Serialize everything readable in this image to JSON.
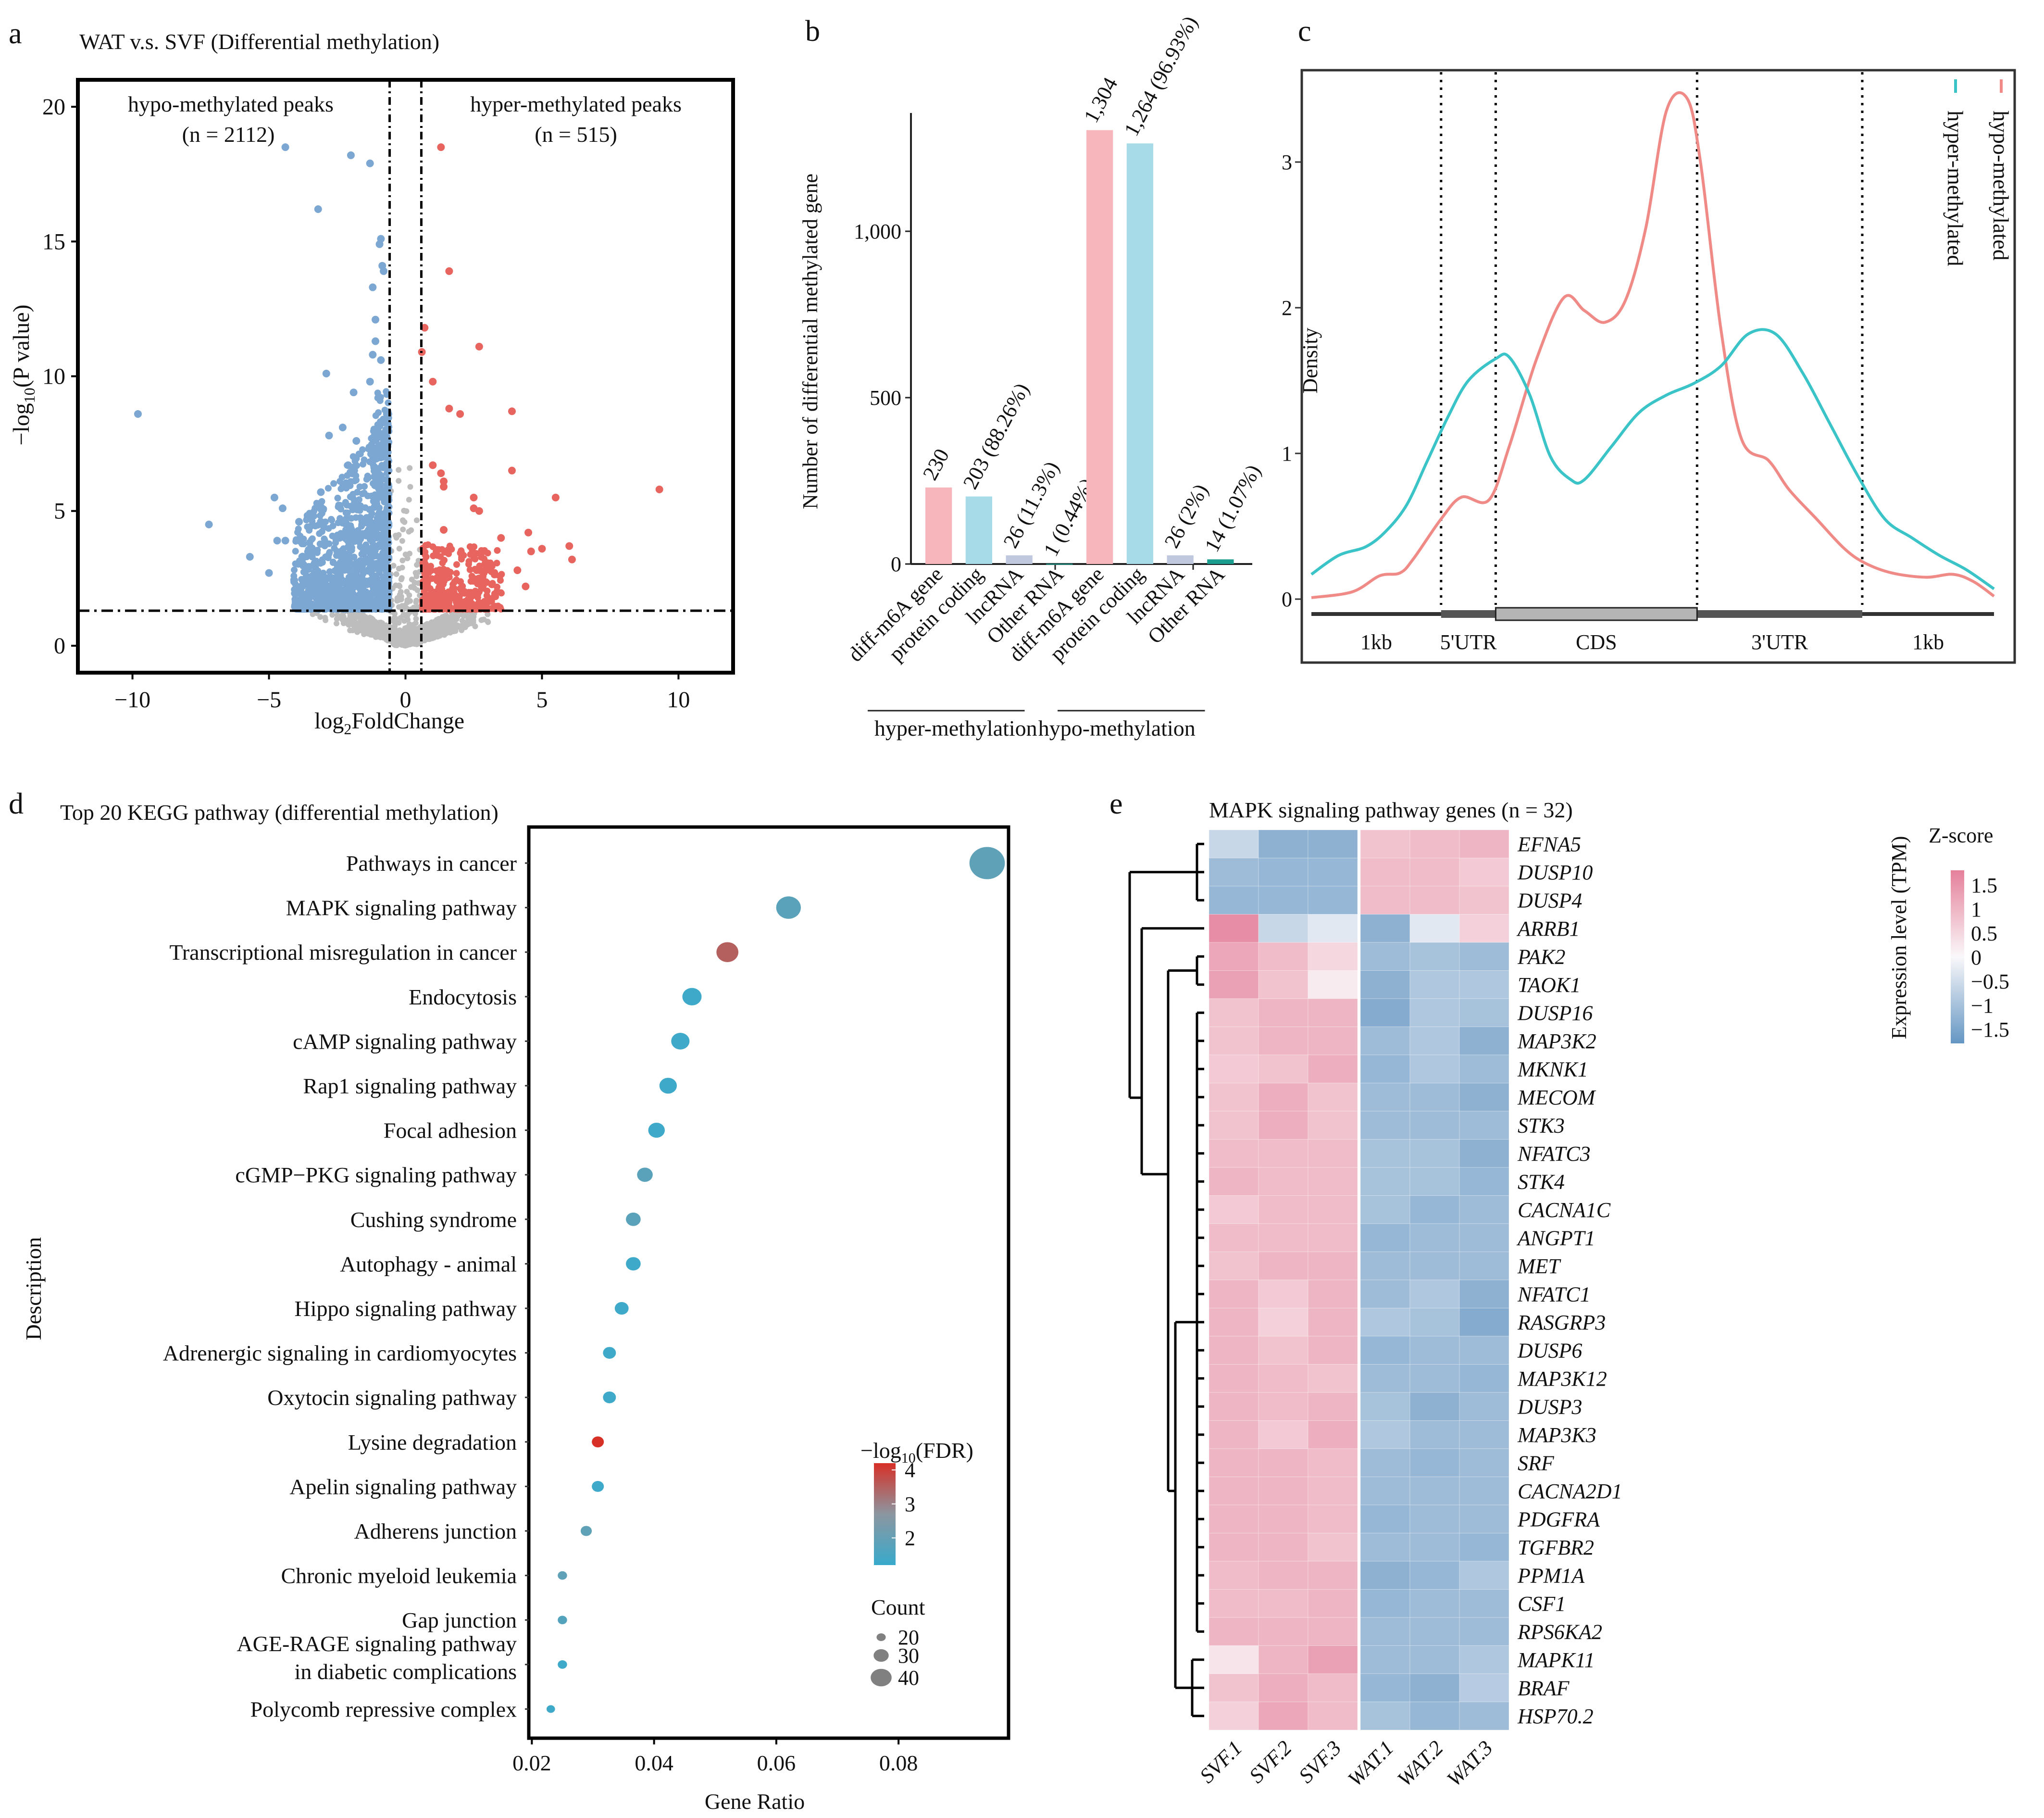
{
  "panels": {
    "a": "a",
    "b": "b",
    "c": "c",
    "d": "d",
    "e": "e"
  },
  "chart_data": [
    {
      "id": "a",
      "type": "scatter",
      "title": "WAT v.s. SVF (Differential methylation)",
      "xlabel": "log2FoldChange",
      "ylabel": "-log10(P value)",
      "xlim": [
        -12,
        12
      ],
      "ylim": [
        -1,
        21
      ],
      "xticks": [
        -10,
        -5,
        0,
        5,
        10
      ],
      "yticks": [
        0,
        5,
        10,
        15,
        20
      ],
      "thresholds": {
        "fc": [
          -0.58,
          0.58
        ],
        "p": 1.3
      },
      "annotations": [
        {
          "text": "hypo-methylated peaks",
          "sub": "(n = 2112)"
        },
        {
          "text": "hyper-methylated peaks",
          "sub": "(n = 515)"
        }
      ],
      "colors": {
        "hypo": "#7ba7d2",
        "hyper": "#e8655f",
        "ns": "#bdbdbd"
      },
      "highlight_points": {
        "hypo": [
          [
            -9.8,
            8.6
          ],
          [
            -7.2,
            4.5
          ],
          [
            -5.7,
            3.3
          ],
          [
            -5.0,
            2.7
          ],
          [
            -4.8,
            5.5
          ],
          [
            -4.5,
            5.1
          ],
          [
            -4.4,
            18.5
          ],
          [
            -3.2,
            16.2
          ],
          [
            -2.9,
            10.1
          ],
          [
            -2.0,
            18.2
          ],
          [
            -1.9,
            9.4
          ],
          [
            -1.3,
            17.9
          ],
          [
            -1.2,
            13.3
          ],
          [
            -1.1,
            12.1
          ],
          [
            -0.9,
            15.1
          ],
          [
            -0.95,
            14.9
          ],
          [
            -0.85,
            14.1
          ],
          [
            -0.8,
            13.9
          ],
          [
            -1.1,
            11.3
          ],
          [
            -1.2,
            10.8
          ],
          [
            -0.9,
            10.6
          ],
          [
            -1.3,
            9.8
          ],
          [
            -2.3,
            8.1
          ],
          [
            -2.8,
            7.8
          ],
          [
            -1.8,
            7.6
          ],
          [
            -2.1,
            6.7
          ],
          [
            -3.1,
            5.7
          ],
          [
            -4.7,
            3.9
          ],
          [
            -4.4,
            3.9
          ],
          [
            -3.9,
            4.6
          ],
          [
            -3.1,
            4.6
          ]
        ],
        "hyper": [
          [
            1.3,
            18.5
          ],
          [
            1.6,
            13.9
          ],
          [
            0.7,
            11.8
          ],
          [
            2.7,
            11.1
          ],
          [
            0.6,
            10.9
          ],
          [
            1.0,
            9.8
          ],
          [
            1.6,
            8.8
          ],
          [
            2.0,
            8.6
          ],
          [
            3.9,
            8.7
          ],
          [
            1.0,
            6.7
          ],
          [
            1.3,
            6.4
          ],
          [
            1.4,
            6.1
          ],
          [
            1.4,
            5.9
          ],
          [
            3.9,
            6.5
          ],
          [
            2.5,
            5.5
          ],
          [
            5.5,
            5.5
          ],
          [
            9.3,
            5.8
          ],
          [
            2.5,
            5.1
          ],
          [
            2.7,
            5.0
          ],
          [
            1.4,
            4.3
          ],
          [
            4.5,
            4.2
          ],
          [
            3.5,
            4.0
          ],
          [
            6.0,
            3.7
          ],
          [
            6.1,
            3.2
          ],
          [
            5.0,
            3.6
          ],
          [
            4.6,
            3.5
          ],
          [
            4.1,
            2.8
          ],
          [
            4.4,
            2.2
          ]
        ]
      }
    },
    {
      "id": "b",
      "type": "bar",
      "ylabel": "Number of differential methylated gene",
      "ylim": [
        0,
        1350
      ],
      "yticks": [
        0,
        500,
        1000
      ],
      "ytick_labels": [
        "0",
        "500",
        "1,000"
      ],
      "categories": [
        "diff-m6A gene",
        "protein coding",
        "lncRNA",
        "Other RNA",
        "diff-m6A gene",
        "protein coding",
        "lncRNA",
        "Other RNA"
      ],
      "values": [
        230,
        203,
        26,
        1,
        1304,
        1264,
        26,
        14
      ],
      "labels": [
        "230",
        "203 (88.26%)",
        "26 (11.3%)",
        "1 (0.44%)",
        "1,304",
        "1,264 (96.93%)",
        "26 (2%)",
        "14 (1.07%)"
      ],
      "colors": [
        "#f7b6bb",
        "#a6dbe7",
        "#c0c8e0",
        "#1b9e8f",
        "#f7b6bb",
        "#a6dbe7",
        "#c0c8e0",
        "#1b9e8f"
      ],
      "groups": [
        {
          "name": "hyper-methylation",
          "range": [
            0,
            3
          ]
        },
        {
          "name": "hypo-methylation",
          "range": [
            4,
            7
          ]
        }
      ]
    },
    {
      "id": "c",
      "type": "line",
      "ylabel": "Density",
      "ylim": [
        -0.4,
        3.6
      ],
      "yticks": [
        0,
        1,
        2,
        3
      ],
      "x_range": [
        0,
        1
      ],
      "region_labels": [
        "1kb",
        "5'UTR",
        "CDS",
        "3'UTR",
        "1kb"
      ],
      "region_bounds": [
        0.0,
        0.19,
        0.27,
        0.565,
        0.807,
        1.0
      ],
      "series": [
        {
          "name": "hypo-methylated",
          "color": "#f08a86",
          "x": [
            0,
            0.06,
            0.1,
            0.13,
            0.15,
            0.19,
            0.22,
            0.26,
            0.29,
            0.33,
            0.37,
            0.4,
            0.43,
            0.46,
            0.49,
            0.52,
            0.55,
            0.57,
            0.6,
            0.63,
            0.67,
            0.7,
            0.74,
            0.78,
            0.81,
            0.85,
            0.9,
            0.94,
            0.97,
            1.0
          ],
          "y": [
            0.01,
            0.05,
            0.16,
            0.18,
            0.28,
            0.55,
            0.7,
            0.68,
            1.05,
            1.65,
            2.07,
            1.98,
            1.9,
            2.05,
            2.55,
            3.35,
            3.44,
            3.0,
            1.85,
            1.1,
            0.95,
            0.75,
            0.55,
            0.35,
            0.25,
            0.18,
            0.15,
            0.17,
            0.12,
            0.02
          ]
        },
        {
          "name": "hyper-methylated",
          "color": "#3bc4c8",
          "x": [
            0,
            0.04,
            0.08,
            0.11,
            0.14,
            0.17,
            0.2,
            0.23,
            0.27,
            0.29,
            0.32,
            0.35,
            0.38,
            0.4,
            0.44,
            0.48,
            0.52,
            0.56,
            0.6,
            0.64,
            0.68,
            0.72,
            0.76,
            0.8,
            0.84,
            0.88,
            0.92,
            0.96,
            1.0
          ],
          "y": [
            0.17,
            0.3,
            0.36,
            0.47,
            0.65,
            0.95,
            1.25,
            1.5,
            1.65,
            1.66,
            1.4,
            0.98,
            0.82,
            0.82,
            1.05,
            1.28,
            1.4,
            1.48,
            1.6,
            1.82,
            1.82,
            1.55,
            1.2,
            0.85,
            0.55,
            0.42,
            0.3,
            0.2,
            0.07
          ]
        }
      ]
    },
    {
      "id": "d",
      "type": "scatter",
      "title": "Top 20 KEGG pathway (differential methylation)",
      "xlabel": "Gene Ratio",
      "ylabel": "Description",
      "xlim": [
        0.0195,
        0.098
      ],
      "xticks": [
        0.02,
        0.04,
        0.06,
        0.08
      ],
      "xtick_labels": [
        "0.02",
        "0.04",
        "0.06",
        "0.08"
      ],
      "legend_color_title": "-log10(FDR)",
      "legend_color_ticks": [
        2,
        3,
        4
      ],
      "legend_color_range": [
        1.2,
        4.2
      ],
      "legend_size_title": "Count",
      "legend_size_values": [
        20,
        30,
        40
      ],
      "legend_placement": "bottom-right",
      "highlight_color": "#d7191c",
      "pathways": [
        {
          "name": "Pathways in cancer",
          "ratio": 0.0945,
          "fdr": 1.9,
          "count": 42,
          "highlight": false
        },
        {
          "name": "MAPK signaling pathway",
          "ratio": 0.062,
          "fdr": 1.8,
          "count": 30,
          "highlight": true
        },
        {
          "name": "Transcriptional misregulation in cancer",
          "ratio": 0.052,
          "fdr": 3.5,
          "count": 27,
          "highlight": false
        },
        {
          "name": "Endocytosis",
          "ratio": 0.0462,
          "fdr": 1.3,
          "count": 24,
          "highlight": false
        },
        {
          "name": "cAMP signaling pathway",
          "ratio": 0.0443,
          "fdr": 1.3,
          "count": 23,
          "highlight": true
        },
        {
          "name": "Rap1 signaling pathway",
          "ratio": 0.0423,
          "fdr": 1.3,
          "count": 22,
          "highlight": false
        },
        {
          "name": "Focal adhesion",
          "ratio": 0.0404,
          "fdr": 1.3,
          "count": 21,
          "highlight": false
        },
        {
          "name": "cGMP−PKG signaling pathway",
          "ratio": 0.0385,
          "fdr": 1.8,
          "count": 20,
          "highlight": false
        },
        {
          "name": "Cushing syndrome",
          "ratio": 0.0366,
          "fdr": 1.8,
          "count": 19,
          "highlight": false
        },
        {
          "name": "Autophagy - animal",
          "ratio": 0.0366,
          "fdr": 1.3,
          "count": 19,
          "highlight": false
        },
        {
          "name": "Hippo signaling pathway",
          "ratio": 0.0347,
          "fdr": 1.3,
          "count": 18,
          "highlight": true
        },
        {
          "name": "Adrenergic signaling in cardiomyocytes",
          "ratio": 0.0327,
          "fdr": 1.3,
          "count": 17,
          "highlight": false
        },
        {
          "name": "Oxytocin signaling pathway",
          "ratio": 0.0327,
          "fdr": 1.3,
          "count": 17,
          "highlight": true
        },
        {
          "name": "Lysine degradation",
          "ratio": 0.0308,
          "fdr": 4.2,
          "count": 16,
          "highlight": false
        },
        {
          "name": "Apelin signaling pathway",
          "ratio": 0.0308,
          "fdr": 1.3,
          "count": 16,
          "highlight": true
        },
        {
          "name": "Adherens junction",
          "ratio": 0.0289,
          "fdr": 1.9,
          "count": 15,
          "highlight": false
        },
        {
          "name": "Chronic myeloid leukemia",
          "ratio": 0.025,
          "fdr": 1.9,
          "count": 13,
          "highlight": false
        },
        {
          "name": "Gap junction",
          "ratio": 0.025,
          "fdr": 1.7,
          "count": 13,
          "highlight": false
        },
        {
          "name": "AGE-RAGE signaling pathway|in diabetic complications",
          "ratio": 0.025,
          "fdr": 1.3,
          "count": 13,
          "highlight": false
        },
        {
          "name": "Polycomb repressive complex",
          "ratio": 0.0231,
          "fdr": 1.3,
          "count": 12,
          "highlight": false
        }
      ]
    },
    {
      "id": "e",
      "type": "heatmap",
      "title": "MAPK signaling pathway genes (n = 32)",
      "legend_title": "Z-score",
      "legend_axis_label": "Expression level (TPM)",
      "legend_ticks": [
        1.5,
        1,
        0.5,
        0,
        -0.5,
        -1,
        -1.5
      ],
      "legend_tick_labels": [
        "1.5",
        "1",
        "0.5",
        "0",
        "−0.5",
        "−1",
        "−1.5"
      ],
      "range": [
        -1.8,
        1.8
      ],
      "columns": [
        "SVF.1",
        "SVF.2",
        "SVF.3",
        "WAT.1",
        "WAT.2",
        "WAT.3"
      ],
      "rows": [
        "EFNA5",
        "DUSP10",
        "DUSP4",
        "ARRB1",
        "PAK2",
        "TAOK1",
        "DUSP16",
        "MAP3K2",
        "MKNK1",
        "MECOM",
        "STK3",
        "NFATC3",
        "STK4",
        "CACNA1C",
        "ANGPT1",
        "MET",
        "NFATC1",
        "RASGRP3",
        "DUSP6",
        "MAP3K12",
        "DUSP3",
        "MAP3K3",
        "SRF",
        "CACNA2D1",
        "PDGFRA",
        "TGFBR2",
        "PPM1A",
        "CSF1",
        "RPS6KA2",
        "MAPK11",
        "BRAF",
        "HSP70.2"
      ],
      "values": [
        [
          -0.6,
          -1.3,
          -1.3,
          0.8,
          0.9,
          1.0
        ],
        [
          -1.1,
          -1.2,
          -1.2,
          0.9,
          0.9,
          0.7
        ],
        [
          -1.2,
          -1.2,
          -1.2,
          0.9,
          0.9,
          0.8
        ],
        [
          1.6,
          -0.6,
          -0.3,
          -1.3,
          -0.3,
          0.6
        ],
        [
          1.2,
          0.9,
          0.5,
          -1.1,
          -1.0,
          -1.1
        ],
        [
          1.3,
          0.8,
          0.2,
          -1.3,
          -0.9,
          -0.9
        ],
        [
          0.8,
          1.0,
          1.0,
          -1.4,
          -0.9,
          -1.0
        ],
        [
          0.8,
          1.0,
          1.0,
          -1.1,
          -0.9,
          -1.3
        ],
        [
          0.7,
          0.8,
          1.1,
          -1.2,
          -0.9,
          -1.1
        ],
        [
          0.8,
          1.1,
          0.8,
          -1.1,
          -1.1,
          -1.3
        ],
        [
          0.8,
          1.1,
          0.8,
          -1.1,
          -1.1,
          -1.1
        ],
        [
          0.9,
          0.9,
          0.9,
          -1.0,
          -1.0,
          -1.3
        ],
        [
          1.0,
          0.9,
          0.9,
          -1.0,
          -1.0,
          -1.2
        ],
        [
          0.7,
          0.9,
          0.9,
          -1.0,
          -1.2,
          -1.1
        ],
        [
          0.9,
          0.9,
          0.9,
          -1.2,
          -1.1,
          -1.1
        ],
        [
          0.8,
          1.0,
          1.0,
          -1.1,
          -1.1,
          -1.1
        ],
        [
          1.0,
          0.7,
          1.0,
          -1.1,
          -0.9,
          -1.3
        ],
        [
          1.0,
          0.6,
          1.0,
          -0.9,
          -1.0,
          -1.4
        ],
        [
          1.0,
          0.8,
          1.0,
          -1.2,
          -1.1,
          -1.1
        ],
        [
          1.0,
          0.9,
          0.8,
          -1.1,
          -1.1,
          -1.2
        ],
        [
          1.0,
          0.9,
          1.0,
          -1.0,
          -1.3,
          -1.1
        ],
        [
          1.0,
          0.7,
          1.1,
          -0.9,
          -1.1,
          -1.1
        ],
        [
          1.0,
          1.0,
          0.9,
          -1.1,
          -1.2,
          -1.1
        ],
        [
          1.0,
          1.0,
          0.9,
          -1.1,
          -1.1,
          -1.1
        ],
        [
          1.0,
          1.0,
          0.9,
          -1.2,
          -1.1,
          -1.1
        ],
        [
          1.0,
          1.0,
          0.8,
          -1.1,
          -1.1,
          -1.2
        ],
        [
          0.9,
          1.0,
          1.0,
          -1.3,
          -1.2,
          -0.9
        ],
        [
          0.9,
          0.9,
          1.0,
          -1.2,
          -1.1,
          -1.1
        ],
        [
          1.0,
          1.0,
          1.0,
          -1.1,
          -1.1,
          -1.1
        ],
        [
          0.3,
          1.0,
          1.3,
          -1.1,
          -1.1,
          -0.9
        ],
        [
          0.8,
          1.1,
          0.9,
          -1.2,
          -1.3,
          -0.8
        ],
        [
          0.6,
          1.2,
          0.9,
          -1.0,
          -1.2,
          -1.1
        ]
      ]
    }
  ]
}
